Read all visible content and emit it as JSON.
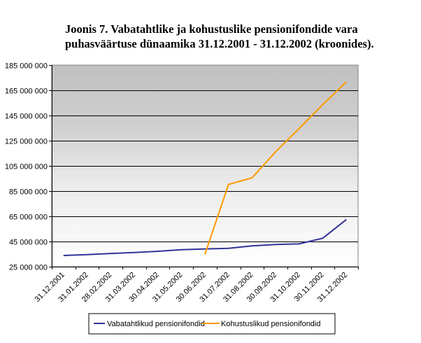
{
  "chart_data": {
    "type": "line",
    "title_line1": "Joonis 7. Vabatahtlike ja kohustuslike pensionifondide vara",
    "title_line2": "puhasväärtuse dünaamika 31.12.2001 - 31.12.2002 (kroonides).",
    "xlabel": "",
    "ylabel": "",
    "ylim": [
      25000000,
      185000000
    ],
    "yticks": [
      25000000,
      45000000,
      65000000,
      85000000,
      105000000,
      125000000,
      145000000,
      165000000,
      185000000
    ],
    "ytick_labels": [
      "25 000 000",
      "45 000 000",
      "65 000 000",
      "85 000 000",
      "105 000 000",
      "125 000 000",
      "145 000 000",
      "165 000 000",
      "185 000 000"
    ],
    "categories": [
      "31.12.2001",
      "31.01.2002",
      "28.02.2002",
      "31.03.2002",
      "30.04.2002",
      "31.05.2002",
      "30.06.2002",
      "31.07.2002",
      "31.08.2002",
      "30.09.2002",
      "31.10.2002",
      "30.11.2002",
      "31.12.2002"
    ],
    "grid": true,
    "legend_position": "bottom",
    "series": [
      {
        "name": "Vabatahtlikud pensionifondid",
        "color": "#333399",
        "values": [
          33900000,
          34600000,
          35500000,
          36300000,
          37200000,
          38500000,
          39100000,
          39600000,
          41500000,
          42600000,
          43100000,
          47600000,
          62400000
        ]
      },
      {
        "name": "Kohustuslikud pensionifondid",
        "color": "#FF9900",
        "values": [
          null,
          null,
          null,
          null,
          null,
          null,
          34800000,
          90300000,
          95500000,
          116200000,
          134700000,
          153600000,
          171700000
        ]
      }
    ]
  }
}
